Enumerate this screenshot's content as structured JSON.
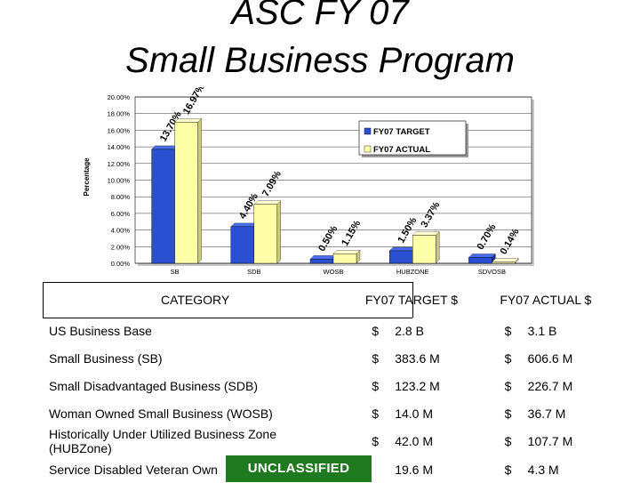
{
  "title_line1": "ASC FY 07",
  "title_line2": "Small Business Program",
  "chart_data": {
    "type": "bar",
    "ylabel": "Percentage",
    "ylim": [
      0,
      20
    ],
    "yticks": [
      "0.00%",
      "2.00%",
      "4.00%",
      "6.00%",
      "8.00%",
      "10.00%",
      "12.00%",
      "14.00%",
      "16.00%",
      "18.00%",
      "20.00%"
    ],
    "categories": [
      "SB",
      "SDB",
      "WOSB",
      "HUBZONE",
      "SDVOSB"
    ],
    "series": [
      {
        "name": "FY07 TARGET",
        "color": "#2b4fd1",
        "values": [
          13.7,
          4.4,
          0.5,
          1.5,
          0.7
        ],
        "labels": [
          "13.70%",
          "4.40%",
          "0.50%",
          "1.50%",
          "0.70%"
        ]
      },
      {
        "name": "FY07 ACTUAL",
        "color": "#ffffa8",
        "values": [
          16.97,
          7.09,
          1.15,
          3.37,
          0.14
        ],
        "labels": [
          "16.97%",
          "7.09%",
          "1.15%",
          "3.37%",
          "0.14%"
        ]
      }
    ],
    "legend_position": "top-right",
    "grid": true
  },
  "table": {
    "headers": {
      "category": "CATEGORY",
      "target": "FY07  TARGET  $",
      "actual": "FY07  ACTUAL  $"
    },
    "rows": [
      {
        "category": "US Business Base",
        "t_cur": "$",
        "t_val": "2.8 B",
        "a_cur": "$",
        "a_val": "3.1 B"
      },
      {
        "category": "Small Business (SB)",
        "t_cur": "$",
        "t_val": "383.6 M",
        "a_cur": "$",
        "a_val": "606.6 M"
      },
      {
        "category": "Small Disadvantaged Business (SDB)",
        "t_cur": "$",
        "t_val": "123.2 M",
        "a_cur": "$",
        "a_val": "226.7 M"
      },
      {
        "category": "Woman Owned Small Business (WOSB)",
        "t_cur": "$",
        "t_val": "14.0 M",
        "a_cur": "$",
        "a_val": "36.7 M"
      },
      {
        "category": "Historically Under Utilized Business Zone (HUBZone)",
        "t_cur": "$",
        "t_val": "42.0 M",
        "a_cur": "$",
        "a_val": "107.7 M"
      },
      {
        "category": "Service Disabled Veteran Own",
        "t_cur": "",
        "t_val": "19.6 M",
        "a_cur": "$",
        "a_val": "4.3 M"
      }
    ]
  },
  "banner": "UNCLASSIFIED"
}
